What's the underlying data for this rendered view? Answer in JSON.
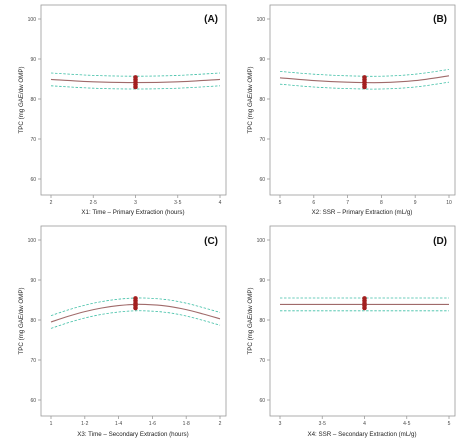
{
  "colors": {
    "fit": "#a06a6a",
    "ci": "#3fbfa6",
    "point": "#a31f1f",
    "axis": "#9a9a9a"
  },
  "chart_data": [
    {
      "type": "line",
      "panel_label": "(A)",
      "ylabel": "TPC (mg GAE/dw OMP)",
      "xlabel": "X1: Time – Primary Extraction (hours)",
      "xticks": [
        2,
        2.5,
        3,
        3.5,
        4
      ],
      "xtick_labels": [
        "2",
        "2·5",
        "3",
        "3·5",
        "4"
      ],
      "xlim": [
        2,
        4
      ],
      "yticks": [
        60,
        70,
        80,
        90,
        100
      ],
      "ylim": [
        58,
        102
      ],
      "x": [
        2,
        2.5,
        3,
        3.5,
        4
      ],
      "series": [
        {
          "role": "fit",
          "values": [
            84.9,
            84.3,
            84.1,
            84.3,
            84.9
          ]
        },
        {
          "role": "upper",
          "values": [
            86.5,
            85.9,
            85.7,
            85.9,
            86.5
          ]
        },
        {
          "role": "lower",
          "values": [
            83.3,
            82.7,
            82.5,
            82.7,
            83.3
          ]
        }
      ],
      "points": {
        "x": 3,
        "y": [
          83.0,
          83.6,
          84.2,
          84.8,
          85.4
        ]
      }
    },
    {
      "type": "line",
      "panel_label": "(B)",
      "ylabel": "TPC (mg GAE/dw OMP)",
      "xlabel": "X2: SSR – Primary Extraction (mL/g)",
      "xticks": [
        5,
        6,
        7,
        8,
        9,
        10
      ],
      "xtick_labels": [
        "5",
        "6",
        "7",
        "8",
        "9",
        "10"
      ],
      "xlim": [
        5,
        10
      ],
      "yticks": [
        60,
        70,
        80,
        90,
        100
      ],
      "ylim": [
        58,
        102
      ],
      "x": [
        5,
        6,
        7,
        8,
        9,
        10
      ],
      "series": [
        {
          "role": "fit",
          "values": [
            85.3,
            84.6,
            84.2,
            84.1,
            84.6,
            85.8
          ]
        },
        {
          "role": "upper",
          "values": [
            86.9,
            86.2,
            85.8,
            85.7,
            86.2,
            87.4
          ]
        },
        {
          "role": "lower",
          "values": [
            83.7,
            83.0,
            82.6,
            82.5,
            83.0,
            84.2
          ]
        }
      ],
      "points": {
        "x": 7.5,
        "y": [
          83.0,
          83.6,
          84.2,
          84.8,
          85.4
        ]
      }
    },
    {
      "type": "line",
      "panel_label": "(C)",
      "ylabel": "TPC (mg GAE/dw OMP)",
      "xlabel": "X3: Time – Secondary Extraction (hours)",
      "xticks": [
        1,
        1.2,
        1.4,
        1.6,
        1.8,
        2
      ],
      "xtick_labels": [
        "1",
        "1·2",
        "1·4",
        "1·6",
        "1·8",
        "2"
      ],
      "xlim": [
        1,
        2
      ],
      "yticks": [
        60,
        70,
        80,
        90,
        100
      ],
      "ylim": [
        58,
        102
      ],
      "x": [
        1,
        1.1,
        1.2,
        1.3,
        1.4,
        1.5,
        1.6,
        1.7,
        1.8,
        1.9,
        2
      ],
      "series": [
        {
          "role": "fit",
          "values": [
            79.5,
            80.9,
            82.1,
            83.0,
            83.6,
            83.9,
            83.8,
            83.4,
            82.6,
            81.5,
            80.3
          ]
        },
        {
          "role": "upper",
          "values": [
            81.1,
            82.5,
            83.7,
            84.6,
            85.2,
            85.5,
            85.4,
            85.0,
            84.2,
            83.1,
            81.9
          ]
        },
        {
          "role": "lower",
          "values": [
            77.9,
            79.3,
            80.5,
            81.4,
            82.0,
            82.3,
            82.2,
            81.8,
            81.0,
            79.9,
            78.7
          ]
        }
      ],
      "points": {
        "x": 1.5,
        "y": [
          83.0,
          83.6,
          84.2,
          84.8,
          85.4
        ]
      }
    },
    {
      "type": "line",
      "panel_label": "(D)",
      "ylabel": "TPC (mg GAE/dw OMP)",
      "xlabel": "X4: SSR – Secondary Extraction (mL/g)",
      "xticks": [
        3,
        3.5,
        4,
        4.5,
        5
      ],
      "xtick_labels": [
        "3",
        "3·5",
        "4",
        "4·5",
        "5"
      ],
      "xlim": [
        3,
        5
      ],
      "yticks": [
        60,
        70,
        80,
        90,
        100
      ],
      "ylim": [
        58,
        102
      ],
      "x": [
        3,
        3.5,
        4,
        4.5,
        5
      ],
      "series": [
        {
          "role": "fit",
          "values": [
            83.9,
            83.9,
            83.9,
            83.9,
            83.9
          ]
        },
        {
          "role": "upper",
          "values": [
            85.5,
            85.5,
            85.5,
            85.5,
            85.5
          ]
        },
        {
          "role": "lower",
          "values": [
            82.3,
            82.3,
            82.3,
            82.3,
            82.3
          ]
        }
      ],
      "points": {
        "x": 4,
        "y": [
          83.0,
          83.6,
          84.2,
          84.8,
          85.4
        ]
      }
    }
  ]
}
